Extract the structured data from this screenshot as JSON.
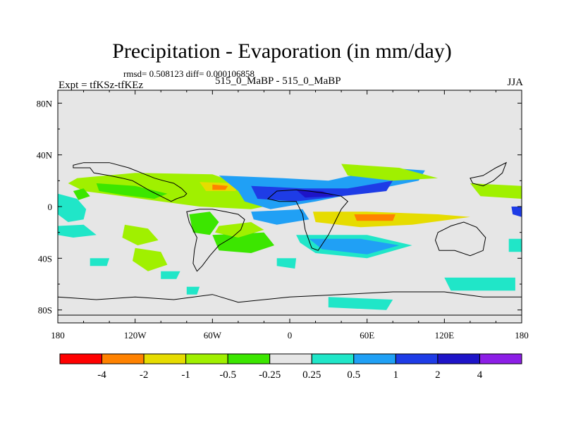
{
  "header": {
    "title": "Precipitation - Evaporation (in mm/day)",
    "stats": "rmsd= 0.508123 diff= 0.000106858",
    "experiment": "Expt = tfKSz-tfKEz",
    "comparison": "515_0_MaBP - 515_0_MaBP",
    "season": "JJA"
  },
  "chart_data": {
    "type": "heatmap",
    "title": "Precipitation - Evaporation (in mm/day)",
    "subtitle": "rmsd= 0.508123 diff= 0.000106858",
    "xlabel": "",
    "ylabel": "",
    "xlim": [
      -180,
      180
    ],
    "ylim": [
      -90,
      90
    ],
    "x_ticks": [
      {
        "value": -180,
        "label": "180"
      },
      {
        "value": -120,
        "label": "120W"
      },
      {
        "value": -60,
        "label": "60W"
      },
      {
        "value": 0,
        "label": "0"
      },
      {
        "value": 60,
        "label": "60E"
      },
      {
        "value": 120,
        "label": "120E"
      },
      {
        "value": 180,
        "label": "180"
      }
    ],
    "y_ticks": [
      {
        "value": 80,
        "label": "80N"
      },
      {
        "value": 40,
        "label": "40N"
      },
      {
        "value": 0,
        "label": "0"
      },
      {
        "value": -40,
        "label": "40S"
      },
      {
        "value": -80,
        "label": "80S"
      }
    ],
    "colorbar": {
      "levels": [
        "-4",
        "-2",
        "-1",
        "-0.5",
        "-0.25",
        "0.25",
        "0.5",
        "1",
        "2",
        "4"
      ],
      "colors": [
        "#ff0000",
        "#ff8200",
        "#e6dc00",
        "#a0f000",
        "#3ce600",
        "#e6e6e6",
        "#20e6c8",
        "#20a0f5",
        "#1e3ce6",
        "#1e14c8",
        "#8c1ee6"
      ]
    },
    "background_color": "#e6e6e6",
    "features": [
      {
        "category": 3,
        "points": [
          [
            -165,
            22
          ],
          [
            -120,
            26
          ],
          [
            -60,
            25
          ],
          [
            -40,
            18
          ],
          [
            -20,
            10
          ],
          [
            -10,
            2
          ],
          [
            -30,
            -2
          ],
          [
            -70,
            0
          ],
          [
            -100,
            4
          ],
          [
            -130,
            8
          ],
          [
            -160,
            12
          ],
          [
            -172,
            18
          ]
        ]
      },
      {
        "category": 4,
        "points": [
          [
            -150,
            18
          ],
          [
            -120,
            16
          ],
          [
            -95,
            10
          ],
          [
            -105,
            6
          ],
          [
            -130,
            9
          ],
          [
            -148,
            12
          ]
        ]
      },
      {
        "category": 4,
        "points": [
          [
            -168,
            12
          ],
          [
            -160,
            14
          ],
          [
            -155,
            8
          ],
          [
            -164,
            5
          ]
        ]
      },
      {
        "category": 6,
        "points": [
          [
            -180,
            10
          ],
          [
            -165,
            6
          ],
          [
            -158,
            -2
          ],
          [
            -160,
            -10
          ],
          [
            -172,
            -12
          ],
          [
            -180,
            -6
          ]
        ]
      },
      {
        "category": 6,
        "points": [
          [
            -180,
            -15
          ],
          [
            -160,
            -14
          ],
          [
            -150,
            -22
          ],
          [
            -168,
            -24
          ],
          [
            -180,
            -22
          ]
        ]
      },
      {
        "category": 3,
        "points": [
          [
            -128,
            -14
          ],
          [
            -110,
            -17
          ],
          [
            -102,
            -26
          ],
          [
            -118,
            -30
          ],
          [
            -130,
            -24
          ]
        ]
      },
      {
        "category": 3,
        "points": [
          [
            -120,
            -32
          ],
          [
            -100,
            -35
          ],
          [
            -95,
            -45
          ],
          [
            -110,
            -50
          ],
          [
            -122,
            -42
          ]
        ]
      },
      {
        "category": 4,
        "points": [
          [
            -78,
            -6
          ],
          [
            -62,
            -4
          ],
          [
            -55,
            -12
          ],
          [
            -62,
            -22
          ],
          [
            -75,
            -20
          ]
        ]
      },
      {
        "category": 4,
        "points": [
          [
            -60,
            -22
          ],
          [
            -20,
            -20
          ],
          [
            -12,
            -30
          ],
          [
            -30,
            -36
          ],
          [
            -55,
            -34
          ]
        ]
      },
      {
        "category": 3,
        "points": [
          [
            -55,
            -15
          ],
          [
            -30,
            -12
          ],
          [
            -20,
            -18
          ],
          [
            -40,
            -24
          ],
          [
            -58,
            -20
          ]
        ]
      },
      {
        "category": 3,
        "points": [
          [
            -82,
            22
          ],
          [
            -35,
            20
          ],
          [
            -8,
            12
          ],
          [
            -40,
            5
          ],
          [
            -75,
            10
          ]
        ]
      },
      {
        "category": 2,
        "points": [
          [
            -70,
            19
          ],
          [
            -40,
            18
          ],
          [
            -42,
            12
          ],
          [
            -65,
            12
          ]
        ]
      },
      {
        "category": 1,
        "points": [
          [
            -60,
            17
          ],
          [
            -48,
            16
          ],
          [
            -50,
            13
          ],
          [
            -60,
            13
          ]
        ]
      },
      {
        "category": 7,
        "points": [
          [
            -55,
            24
          ],
          [
            -5,
            22
          ],
          [
            30,
            20
          ],
          [
            75,
            30
          ],
          [
            105,
            28
          ],
          [
            100,
            20
          ],
          [
            60,
            12
          ],
          [
            20,
            4
          ],
          [
            -15,
            -2
          ],
          [
            -35,
            4
          ],
          [
            -40,
            12
          ]
        ]
      },
      {
        "category": 8,
        "points": [
          [
            -30,
            16
          ],
          [
            10,
            14
          ],
          [
            45,
            14
          ],
          [
            80,
            20
          ],
          [
            75,
            12
          ],
          [
            40,
            8
          ],
          [
            5,
            4
          ],
          [
            -25,
            6
          ]
        ]
      },
      {
        "category": 9,
        "points": [
          [
            5,
            13
          ],
          [
            25,
            12
          ],
          [
            35,
            8
          ],
          [
            12,
            7
          ]
        ]
      },
      {
        "category": 3,
        "points": [
          [
            40,
            33
          ],
          [
            85,
            30
          ],
          [
            115,
            22
          ],
          [
            80,
            20
          ],
          [
            45,
            24
          ]
        ]
      },
      {
        "category": 2,
        "points": [
          [
            18,
            -4
          ],
          [
            60,
            -4
          ],
          [
            115,
            -6
          ],
          [
            140,
            -8
          ],
          [
            95,
            -14
          ],
          [
            55,
            -16
          ],
          [
            20,
            -12
          ]
        ]
      },
      {
        "category": 2,
        "points": [
          [
            26,
            -6
          ],
          [
            60,
            -6
          ],
          [
            110,
            -8
          ],
          [
            105,
            -12
          ],
          [
            60,
            -12
          ],
          [
            28,
            -11
          ]
        ]
      },
      {
        "category": 1,
        "points": [
          [
            50,
            -6
          ],
          [
            82,
            -6
          ],
          [
            80,
            -11
          ],
          [
            52,
            -11
          ]
        ]
      },
      {
        "category": 3,
        "points": [
          [
            140,
            18
          ],
          [
            180,
            16
          ],
          [
            180,
            6
          ],
          [
            148,
            8
          ]
        ]
      },
      {
        "category": 6,
        "points": [
          [
            5,
            -22
          ],
          [
            60,
            -22
          ],
          [
            95,
            -30
          ],
          [
            60,
            -40
          ],
          [
            20,
            -36
          ],
          [
            8,
            -28
          ]
        ]
      },
      {
        "category": 7,
        "points": [
          [
            15,
            -25
          ],
          [
            55,
            -25
          ],
          [
            85,
            -30
          ],
          [
            60,
            -37
          ],
          [
            25,
            -33
          ]
        ]
      },
      {
        "category": 7,
        "points": [
          [
            -30,
            -4
          ],
          [
            10,
            -2
          ],
          [
            15,
            -10
          ],
          [
            -10,
            -14
          ],
          [
            -28,
            -10
          ]
        ]
      },
      {
        "category": 6,
        "points": [
          [
            120,
            -55
          ],
          [
            175,
            -55
          ],
          [
            175,
            -65
          ],
          [
            125,
            -65
          ]
        ]
      },
      {
        "category": 6,
        "points": [
          [
            30,
            -70
          ],
          [
            80,
            -72
          ],
          [
            75,
            -80
          ],
          [
            30,
            -78
          ]
        ]
      },
      {
        "category": 6,
        "points": [
          [
            -155,
            -40
          ],
          [
            -140,
            -40
          ],
          [
            -142,
            -46
          ],
          [
            -155,
            -46
          ]
        ]
      },
      {
        "category": 6,
        "points": [
          [
            -100,
            -50
          ],
          [
            -85,
            -50
          ],
          [
            -88,
            -56
          ],
          [
            -100,
            -56
          ]
        ]
      },
      {
        "category": 6,
        "points": [
          [
            -80,
            -62
          ],
          [
            -70,
            -62
          ],
          [
            -72,
            -68
          ],
          [
            -80,
            -68
          ]
        ]
      },
      {
        "category": 6,
        "points": [
          [
            170,
            -25
          ],
          [
            180,
            -25
          ],
          [
            180,
            -35
          ],
          [
            170,
            -35
          ]
        ]
      },
      {
        "category": 8,
        "points": [
          [
            172,
            0
          ],
          [
            180,
            0
          ],
          [
            180,
            -8
          ],
          [
            173,
            -6
          ]
        ]
      },
      {
        "category": 6,
        "points": [
          [
            -10,
            -40
          ],
          [
            5,
            -40
          ],
          [
            4,
            -48
          ],
          [
            -10,
            -46
          ]
        ]
      }
    ],
    "continents": [
      {
        "name": "north-america",
        "points": [
          [
            -168,
            30
          ],
          [
            -155,
            30
          ],
          [
            -152,
            26
          ],
          [
            -140,
            24
          ],
          [
            -130,
            22
          ],
          [
            -122,
            20
          ],
          [
            -115,
            16
          ],
          [
            -108,
            12
          ],
          [
            -100,
            8
          ],
          [
            -92,
            4
          ],
          [
            -88,
            6
          ],
          [
            -82,
            8
          ],
          [
            -80,
            10
          ],
          [
            -84,
            14
          ],
          [
            -90,
            18
          ],
          [
            -98,
            20
          ],
          [
            -105,
            22
          ],
          [
            -115,
            26
          ],
          [
            -125,
            30
          ],
          [
            -140,
            34
          ],
          [
            -160,
            34
          ],
          [
            -168,
            32
          ]
        ]
      },
      {
        "name": "south-america",
        "points": [
          [
            -80,
            -4
          ],
          [
            -70,
            -2
          ],
          [
            -60,
            -2
          ],
          [
            -50,
            -4
          ],
          [
            -40,
            -6
          ],
          [
            -35,
            -10
          ],
          [
            -38,
            -18
          ],
          [
            -45,
            -24
          ],
          [
            -55,
            -30
          ],
          [
            -62,
            -38
          ],
          [
            -68,
            -46
          ],
          [
            -72,
            -50
          ],
          [
            -75,
            -44
          ],
          [
            -74,
            -34
          ],
          [
            -72,
            -24
          ],
          [
            -78,
            -12
          ]
        ]
      },
      {
        "name": "africa",
        "points": [
          [
            -17,
            6
          ],
          [
            -10,
            12
          ],
          [
            5,
            13
          ],
          [
            15,
            12
          ],
          [
            30,
            10
          ],
          [
            40,
            8
          ],
          [
            45,
            4
          ],
          [
            40,
            -2
          ],
          [
            35,
            -12
          ],
          [
            30,
            -22
          ],
          [
            22,
            -34
          ],
          [
            17,
            -32
          ],
          [
            12,
            -18
          ],
          [
            10,
            -6
          ],
          [
            5,
            4
          ],
          [
            -8,
            4
          ]
        ]
      },
      {
        "name": "australia",
        "points": [
          [
            115,
            -20
          ],
          [
            125,
            -15
          ],
          [
            135,
            -12
          ],
          [
            145,
            -16
          ],
          [
            152,
            -24
          ],
          [
            150,
            -34
          ],
          [
            140,
            -38
          ],
          [
            128,
            -34
          ],
          [
            116,
            -34
          ],
          [
            113,
            -26
          ]
        ]
      },
      {
        "name": "antarctica",
        "points": [
          [
            -180,
            -70
          ],
          [
            -150,
            -72
          ],
          [
            -120,
            -70
          ],
          [
            -90,
            -72
          ],
          [
            -60,
            -68
          ],
          [
            -40,
            -74
          ],
          [
            0,
            -70
          ],
          [
            40,
            -68
          ],
          [
            80,
            -66
          ],
          [
            120,
            -66
          ],
          [
            150,
            -70
          ],
          [
            180,
            -70
          ],
          [
            180,
            -84
          ],
          [
            -180,
            -84
          ]
        ]
      },
      {
        "name": "asia-east",
        "points": [
          [
            140,
            22
          ],
          [
            150,
            24
          ],
          [
            160,
            30
          ],
          [
            168,
            34
          ],
          [
            165,
            26
          ],
          [
            158,
            20
          ],
          [
            150,
            16
          ],
          [
            142,
            18
          ]
        ]
      }
    ]
  }
}
